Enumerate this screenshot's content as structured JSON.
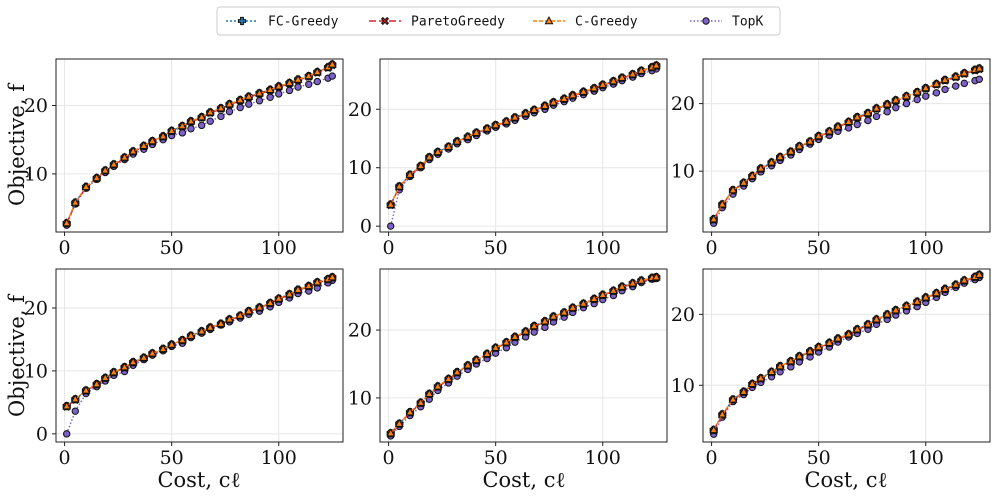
{
  "chart_data": {
    "type": "line",
    "layout": "grid of 2 rows and 3 columns",
    "xlabel": "Cost, cℓ",
    "ylabel": "Objective, f",
    "legend": {
      "placement": "top-center",
      "entries": [
        "FC-Greedy",
        "ParetoGreedy",
        "C-Greedy",
        "TopK"
      ]
    },
    "series_styles": [
      {
        "name": "FC-Greedy",
        "color": "#1f77b4",
        "marker": "plus",
        "dash": "2,2"
      },
      {
        "name": "ParetoGreedy",
        "color": "#d62728",
        "marker": "x",
        "dash": "7,3"
      },
      {
        "name": "C-Greedy",
        "color": "#ff7f0e",
        "marker": "triangle",
        "dash": "4,2"
      },
      {
        "name": "TopK",
        "color": "#7b61c9",
        "marker": "circle",
        "dash": "1.5,2"
      }
    ],
    "marker_edge_color": "#111111",
    "x": [
      1,
      5,
      10,
      15,
      19,
      23,
      28,
      32,
      37,
      41,
      46,
      50,
      55,
      59,
      64,
      68,
      73,
      77,
      82,
      86,
      91,
      96,
      100,
      105,
      109,
      114,
      118,
      123,
      125
    ],
    "panels": [
      {
        "id": "r1c1",
        "xlim": [
          -4,
          130
        ],
        "ylim": [
          1.5,
          26.8
        ],
        "xticks": [
          0,
          50,
          100
        ],
        "yticks": [
          10,
          20
        ],
        "series": [
          {
            "name": "FC-Greedy",
            "values": [
              2.8,
              5.8,
              8.1,
              9.4,
              10.5,
              11.4,
              12.4,
              13.3,
              14.1,
              14.8,
              15.5,
              16.3,
              17.0,
              17.7,
              18.3,
              19.0,
              19.6,
              20.2,
              20.8,
              21.3,
              21.8,
              22.3,
              22.8,
              23.3,
              23.8,
              24.3,
              24.9,
              25.6,
              26.0
            ]
          },
          {
            "name": "ParetoGreedy",
            "values": [
              2.7,
              5.7,
              8.0,
              9.3,
              10.4,
              11.3,
              12.3,
              13.2,
              14.0,
              14.7,
              15.4,
              16.2,
              16.9,
              17.6,
              18.2,
              18.9,
              19.5,
              20.1,
              20.7,
              21.2,
              21.7,
              22.2,
              22.7,
              23.2,
              23.7,
              24.2,
              24.8,
              25.5,
              25.9
            ]
          },
          {
            "name": "C-Greedy",
            "values": [
              2.8,
              5.8,
              8.1,
              9.4,
              10.5,
              11.4,
              12.4,
              13.3,
              14.1,
              14.8,
              15.5,
              16.3,
              17.0,
              17.7,
              18.3,
              19.0,
              19.6,
              20.2,
              20.8,
              21.3,
              21.8,
              22.3,
              22.8,
              23.3,
              23.8,
              24.3,
              24.9,
              25.6,
              26.0
            ]
          },
          {
            "name": "TopK",
            "values": [
              2.5,
              5.6,
              7.9,
              9.2,
              10.2,
              11.1,
              12.1,
              12.9,
              13.6,
              14.3,
              15.0,
              15.6,
              16.0,
              16.6,
              17.1,
              17.7,
              18.4,
              19.1,
              19.7,
              20.2,
              20.7,
              21.2,
              21.7,
              22.2,
              22.7,
              23.1,
              23.5,
              24.0,
              24.3
            ]
          }
        ]
      },
      {
        "id": "r1c2",
        "xlim": [
          -4,
          130
        ],
        "ylim": [
          -1.0,
          28.6
        ],
        "xticks": [
          0,
          50,
          100
        ],
        "yticks": [
          0,
          10,
          20
        ],
        "series": [
          {
            "name": "FC-Greedy",
            "values": [
              3.7,
              6.8,
              8.8,
              10.3,
              11.8,
              12.7,
              13.6,
              14.5,
              15.3,
              16.0,
              16.7,
              17.3,
              17.9,
              18.6,
              19.3,
              19.9,
              20.6,
              21.2,
              21.8,
              22.4,
              23.0,
              23.6,
              24.2,
              24.8,
              25.4,
              26.0,
              26.6,
              27.2,
              27.5
            ]
          },
          {
            "name": "ParetoGreedy",
            "values": [
              3.6,
              6.7,
              8.7,
              10.2,
              11.7,
              12.6,
              13.5,
              14.4,
              15.2,
              15.9,
              16.6,
              17.2,
              17.8,
              18.5,
              19.2,
              19.8,
              20.5,
              21.1,
              21.7,
              22.3,
              22.9,
              23.5,
              24.1,
              24.7,
              25.3,
              25.9,
              26.5,
              27.1,
              27.4
            ]
          },
          {
            "name": "C-Greedy",
            "values": [
              3.7,
              6.8,
              8.8,
              10.3,
              11.8,
              12.7,
              13.6,
              14.5,
              15.3,
              16.0,
              16.7,
              17.3,
              17.9,
              18.6,
              19.3,
              19.9,
              20.6,
              21.2,
              21.8,
              22.4,
              23.0,
              23.6,
              24.2,
              24.8,
              25.4,
              26.0,
              26.6,
              27.2,
              27.5
            ]
          },
          {
            "name": "TopK",
            "values": [
              0.0,
              6.2,
              8.5,
              10.0,
              11.4,
              12.3,
              13.2,
              14.1,
              14.8,
              15.5,
              16.3,
              16.9,
              17.5,
              18.1,
              18.8,
              19.4,
              20.0,
              20.7,
              21.3,
              21.9,
              22.5,
              23.1,
              23.7,
              24.3,
              24.9,
              25.5,
              26.1,
              26.6,
              26.9
            ]
          }
        ]
      },
      {
        "id": "r1c3",
        "xlim": [
          -4,
          130
        ],
        "ylim": [
          1.0,
          26.6
        ],
        "xticks": [
          0,
          50,
          100
        ],
        "yticks": [
          10,
          20
        ],
        "series": [
          {
            "name": "FC-Greedy",
            "values": [
              2.9,
              5.1,
              7.2,
              8.3,
              9.3,
              10.4,
              11.3,
              12.1,
              12.9,
              13.7,
              14.4,
              15.2,
              15.9,
              16.6,
              17.3,
              18.0,
              18.6,
              19.3,
              19.9,
              20.5,
              21.1,
              21.7,
              22.3,
              22.9,
              23.5,
              24.0,
              24.5,
              25.0,
              25.2
            ]
          },
          {
            "name": "ParetoGreedy",
            "values": [
              2.8,
              5.0,
              7.1,
              8.2,
              9.2,
              10.3,
              11.2,
              12.0,
              12.8,
              13.6,
              14.3,
              15.1,
              15.8,
              16.5,
              17.2,
              17.9,
              18.5,
              19.2,
              19.8,
              20.4,
              21.0,
              21.6,
              22.2,
              22.8,
              23.4,
              23.9,
              24.4,
              24.9,
              25.1
            ]
          },
          {
            "name": "C-Greedy",
            "values": [
              2.9,
              5.1,
              7.2,
              8.3,
              9.3,
              10.4,
              11.3,
              12.1,
              12.9,
              13.7,
              14.4,
              15.2,
              15.9,
              16.6,
              17.3,
              18.0,
              18.6,
              19.3,
              19.9,
              20.5,
              21.1,
              21.7,
              22.3,
              22.9,
              23.5,
              24.0,
              24.5,
              25.0,
              25.2
            ]
          },
          {
            "name": "TopK",
            "values": [
              2.3,
              4.6,
              6.6,
              7.8,
              8.9,
              9.9,
              10.8,
              11.6,
              12.4,
              13.2,
              14.0,
              14.7,
              15.3,
              15.9,
              16.4,
              16.9,
              17.5,
              18.1,
              18.8,
              19.4,
              20.0,
              20.6,
              21.1,
              21.6,
              22.1,
              22.6,
              23.0,
              23.4,
              23.6
            ]
          }
        ]
      },
      {
        "id": "r2c1",
        "xlim": [
          -4,
          130
        ],
        "ylim": [
          -1.3,
          26.2
        ],
        "xticks": [
          0,
          50,
          100
        ],
        "yticks": [
          0,
          10,
          20
        ],
        "series": [
          {
            "name": "FC-Greedy",
            "values": [
              4.4,
              5.5,
              6.9,
              7.9,
              8.9,
              9.8,
              10.6,
              11.4,
              12.1,
              12.8,
              13.5,
              14.2,
              14.9,
              15.6,
              16.3,
              16.9,
              17.5,
              18.2,
              18.8,
              19.5,
              20.1,
              20.8,
              21.5,
              22.2,
              22.9,
              23.5,
              24.1,
              24.6,
              24.9
            ]
          },
          {
            "name": "ParetoGreedy",
            "values": [
              4.3,
              5.4,
              6.8,
              7.8,
              8.8,
              9.7,
              10.5,
              11.3,
              12.0,
              12.7,
              13.4,
              14.1,
              14.8,
              15.5,
              16.2,
              16.8,
              17.4,
              18.1,
              18.7,
              19.4,
              20.0,
              20.7,
              21.4,
              22.1,
              22.8,
              23.4,
              24.0,
              24.5,
              24.8
            ]
          },
          {
            "name": "C-Greedy",
            "values": [
              4.4,
              5.5,
              6.9,
              7.9,
              8.9,
              9.8,
              10.6,
              11.4,
              12.1,
              12.8,
              13.5,
              14.2,
              14.9,
              15.6,
              16.3,
              16.9,
              17.5,
              18.2,
              18.8,
              19.5,
              20.1,
              20.8,
              21.5,
              22.2,
              22.9,
              23.5,
              24.1,
              24.6,
              24.9
            ]
          },
          {
            "name": "TopK",
            "values": [
              0.0,
              3.6,
              6.4,
              7.5,
              8.4,
              9.3,
              9.9,
              10.9,
              11.8,
              12.5,
              13.2,
              13.9,
              14.4,
              15.3,
              16.0,
              16.6,
              17.3,
              17.8,
              18.4,
              19.0,
              19.5,
              20.2,
              20.9,
              21.6,
              22.3,
              22.7,
              23.2,
              24.0,
              24.4
            ]
          }
        ]
      },
      {
        "id": "r2c2",
        "xlim": [
          -4,
          130
        ],
        "ylim": [
          3.5,
          29.0
        ],
        "xticks": [
          0,
          50,
          100
        ],
        "yticks": [
          10,
          20
        ],
        "series": [
          {
            "name": "FC-Greedy",
            "values": [
              4.8,
              6.2,
              7.9,
              9.3,
              10.6,
              11.7,
              12.8,
              13.8,
              14.8,
              15.6,
              16.5,
              17.4,
              18.2,
              19.0,
              19.8,
              20.6,
              21.3,
              22.0,
              22.6,
              23.3,
              23.9,
              24.6,
              25.2,
              25.8,
              26.4,
              26.9,
              27.3,
              27.7,
              27.8
            ]
          },
          {
            "name": "ParetoGreedy",
            "values": [
              4.7,
              6.1,
              7.8,
              9.2,
              10.5,
              11.6,
              12.7,
              13.7,
              14.7,
              15.5,
              16.4,
              17.3,
              18.1,
              18.9,
              19.7,
              20.5,
              21.2,
              21.9,
              22.5,
              23.2,
              23.8,
              24.5,
              25.1,
              25.7,
              26.3,
              26.8,
              27.2,
              27.6,
              27.7
            ]
          },
          {
            "name": "C-Greedy",
            "values": [
              4.8,
              6.2,
              7.9,
              9.3,
              10.6,
              11.7,
              12.8,
              13.8,
              14.8,
              15.6,
              16.5,
              17.4,
              18.2,
              19.0,
              19.8,
              20.6,
              21.3,
              22.0,
              22.6,
              23.3,
              23.9,
              24.6,
              25.2,
              25.8,
              26.4,
              26.9,
              27.3,
              27.7,
              27.8
            ]
          },
          {
            "name": "TopK",
            "values": [
              4.4,
              5.8,
              7.4,
              8.7,
              9.8,
              11.1,
              12.2,
              13.2,
              14.2,
              15.0,
              15.8,
              16.6,
              17.4,
              18.2,
              19.0,
              19.7,
              20.4,
              21.2,
              21.9,
              22.6,
              23.3,
              23.9,
              24.5,
              25.1,
              25.8,
              26.4,
              27.0,
              27.5,
              27.6
            ]
          }
        ]
      },
      {
        "id": "r2c3",
        "xlim": [
          -4,
          130
        ],
        "ylim": [
          2.0,
          26.4
        ],
        "xticks": [
          0,
          50,
          100
        ],
        "yticks": [
          10,
          20
        ],
        "series": [
          {
            "name": "FC-Greedy",
            "values": [
              3.7,
              5.9,
              8.0,
              9.1,
              10.2,
              11.0,
              11.9,
              12.7,
              13.4,
              14.1,
              14.8,
              15.4,
              16.0,
              16.6,
              17.2,
              17.9,
              18.6,
              19.3,
              20.0,
              20.6,
              21.2,
              21.8,
              22.4,
              23.0,
              23.6,
              24.2,
              24.8,
              25.3,
              25.6
            ]
          },
          {
            "name": "ParetoGreedy",
            "values": [
              3.6,
              5.8,
              7.9,
              9.0,
              10.1,
              10.9,
              11.8,
              12.6,
              13.3,
              14.0,
              14.7,
              15.3,
              15.9,
              16.5,
              17.1,
              17.8,
              18.5,
              19.2,
              19.9,
              20.5,
              21.1,
              21.7,
              22.3,
              22.9,
              23.5,
              24.1,
              24.7,
              25.2,
              25.5
            ]
          },
          {
            "name": "C-Greedy",
            "values": [
              3.7,
              5.9,
              8.0,
              9.1,
              10.2,
              11.0,
              11.9,
              12.7,
              13.4,
              14.1,
              14.8,
              15.4,
              16.0,
              16.6,
              17.2,
              17.9,
              18.6,
              19.3,
              20.0,
              20.6,
              21.2,
              21.8,
              22.4,
              23.0,
              23.6,
              24.2,
              24.8,
              25.3,
              25.6
            ]
          },
          {
            "name": "TopK",
            "values": [
              3.1,
              5.5,
              7.7,
              8.7,
              9.7,
              10.4,
              11.2,
              11.9,
              12.6,
              13.3,
              14.0,
              14.7,
              15.4,
              16.1,
              16.8,
              17.3,
              17.9,
              18.6,
              19.3,
              19.9,
              20.5,
              21.1,
              21.7,
              22.4,
              23.1,
              23.8,
              24.4,
              24.9,
              25.2
            ]
          }
        ]
      }
    ]
  }
}
